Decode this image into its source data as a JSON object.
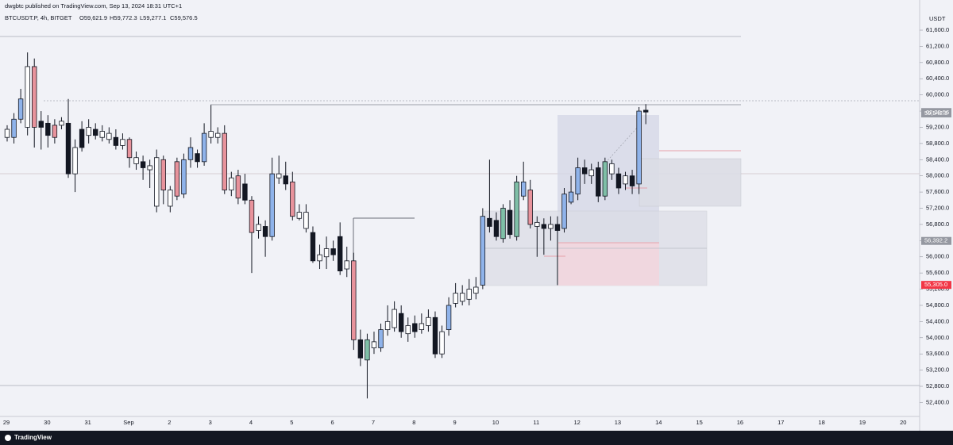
{
  "header": "dwgbtc published on TradingView.com, Sep 13, 2024 18:31 UTC+1",
  "brand": "TradingView",
  "chart_data": {
    "type": "candlestick",
    "title": "BTCUSDT.P, 4h, BITGET",
    "ohlc_legend": [
      "O59,621.9",
      "H59,772.3",
      "L59,277.1",
      "C59,576.5"
    ],
    "y_unit": "USDT",
    "categories": [
      "29",
      "30",
      "31",
      "Sep",
      "2",
      "3",
      "4",
      "5",
      "6",
      "7",
      "8",
      "9",
      "10",
      "11",
      "12",
      "13",
      "14",
      "15",
      "16",
      "17",
      "18",
      "19",
      "20"
    ],
    "open": [
      58950,
      58950,
      59400,
      59200,
      60700,
      59350,
      59300,
      59250,
      59250,
      59300,
      58050,
      59150,
      59000,
      59150,
      58950,
      58900,
      58950,
      58750,
      58900,
      58300,
      58350,
      58150,
      57250,
      58400,
      57250,
      58350,
      57550,
      58400,
      58550,
      58350,
      58950,
      58950,
      59050,
      57650,
      58000,
      57800,
      57400,
      56650,
      56750,
      56500,
      57950,
      58000,
      57850,
      56950,
      56700,
      56600,
      55900,
      56000,
      56200,
      56500,
      55700,
      55900,
      53950,
      53450,
      53750,
      53750,
      54200,
      54250,
      54600,
      54100,
      54350,
      54200,
      54300,
      54500,
      53600,
      54200,
      54850,
      54900,
      54950,
      55100,
      55300,
      56950,
      56900,
      56450,
      57150,
      56500,
      57500,
      57650,
      56750,
      56800,
      56700,
      56800,
      56700,
      57350,
      57550,
      58200,
      58000,
      58200,
      57500,
      58050,
      58050,
      57800,
      58000,
      57800,
      59621.9
    ],
    "high": [
      59250,
      59550,
      60150,
      61050,
      60900,
      59600,
      59500,
      59400,
      59450,
      59900,
      58900,
      59350,
      59400,
      59300,
      59250,
      59200,
      59150,
      59050,
      58950,
      58600,
      58500,
      58400,
      58650,
      58500,
      57750,
      58450,
      58550,
      58950,
      58650,
      59300,
      59750,
      59200,
      59250,
      58100,
      58150,
      58050,
      57500,
      57000,
      56900,
      58450,
      58500,
      58350,
      58100,
      57300,
      57300,
      56750,
      56300,
      56500,
      56400,
      56850,
      56250,
      56100,
      54200,
      54100,
      54150,
      54350,
      54800,
      54900,
      54800,
      54500,
      54550,
      54600,
      54700,
      54650,
      54300,
      55000,
      55350,
      55300,
      55450,
      55500,
      57200,
      58400,
      57100,
      57300,
      57400,
      58000,
      58350,
      57900,
      57000,
      56950,
      57000,
      57000,
      57700,
      58000,
      58450,
      58400,
      58300,
      58350,
      58450,
      58400,
      58200,
      58100,
      58150,
      59700,
      59772.3
    ],
    "low": [
      58850,
      58800,
      59300,
      59000,
      58700,
      58650,
      58700,
      58800,
      59150,
      57950,
      57600,
      58600,
      58800,
      58900,
      58850,
      58800,
      58650,
      58650,
      58200,
      58150,
      57900,
      57700,
      57100,
      57300,
      57100,
      57400,
      57450,
      58200,
      58200,
      58250,
      58800,
      58800,
      57550,
      57500,
      57300,
      57300,
      55600,
      56450,
      56000,
      56400,
      57800,
      57650,
      56900,
      56900,
      56600,
      55850,
      55700,
      55700,
      55900,
      55550,
      55500,
      53700,
      53300,
      52500,
      53600,
      53650,
      54050,
      54150,
      54000,
      53900,
      54000,
      54100,
      54150,
      53500,
      53500,
      54050,
      54750,
      54800,
      54800,
      54950,
      55200,
      56600,
      56400,
      56350,
      56450,
      56400,
      57400,
      56700,
      56000,
      56050,
      56400,
      55300,
      56600,
      57300,
      57400,
      57800,
      57800,
      57350,
      57400,
      57900,
      57550,
      57650,
      57550,
      57550,
      59277.1
    ],
    "close": [
      59150,
      59400,
      59900,
      60700,
      59200,
      59200,
      59000,
      58950,
      59350,
      58050,
      58700,
      58700,
      59200,
      59000,
      59100,
      59050,
      58750,
      58900,
      58450,
      58450,
      58200,
      58250,
      58450,
      57650,
      57650,
      57500,
      58400,
      58700,
      58350,
      59050,
      59100,
      59050,
      57650,
      57950,
      57450,
      57400,
      56600,
      56800,
      56500,
      58050,
      58050,
      57800,
      57000,
      57100,
      57100,
      55900,
      56050,
      56200,
      56050,
      55650,
      55900,
      53950,
      53500,
      53950,
      53900,
      54200,
      54400,
      54700,
      54150,
      54300,
      54150,
      54350,
      54500,
      53600,
      54150,
      54800,
      55100,
      55100,
      55200,
      55250,
      57000,
      56750,
      56500,
      57200,
      56550,
      57850,
      57850,
      56800,
      56850,
      56700,
      56800,
      56650,
      57550,
      57600,
      58200,
      58050,
      58150,
      57500,
      58350,
      58300,
      57700,
      58000,
      57750,
      59600,
      59576.5
    ],
    "colors": [
      "#ffffff",
      "#8fb3ea",
      "#8fb3ea",
      "#ffffff",
      "#e8939c",
      "#131722",
      "#131722",
      "#e8939c",
      "#ffffff",
      "#131722",
      "#ffffff",
      "#131722",
      "#ffffff",
      "#131722",
      "#ffffff",
      "#ffffff",
      "#131722",
      "#ffffff",
      "#e8939c",
      "#ffffff",
      "#131722",
      "#ffffff",
      "#ffffff",
      "#e8939c",
      "#ffffff",
      "#e8939c",
      "#8fb3ea",
      "#8fb3ea",
      "#131722",
      "#8fb3ea",
      "#ffffff",
      "#ffffff",
      "#e8939c",
      "#ffffff",
      "#e8939c",
      "#131722",
      "#e8939c",
      "#ffffff",
      "#131722",
      "#8fb3ea",
      "#ffffff",
      "#131722",
      "#e8939c",
      "#ffffff",
      "#ffffff",
      "#131722",
      "#ffffff",
      "#ffffff",
      "#131722",
      "#131722",
      "#ffffff",
      "#e8939c",
      "#131722",
      "#7fbfa7",
      "#ffffff",
      "#8fb3ea",
      "#ffffff",
      "#ffffff",
      "#131722",
      "#ffffff",
      "#131722",
      "#ffffff",
      "#ffffff",
      "#131722",
      "#ffffff",
      "#8fb3ea",
      "#ffffff",
      "#ffffff",
      "#ffffff",
      "#ffffff",
      "#8fb3ea",
      "#131722",
      "#131722",
      "#7fbfa7",
      "#131722",
      "#7fbfa7",
      "#8fb3ea",
      "#e8939c",
      "#ffffff",
      "#131722",
      "#ffffff",
      "#131722",
      "#8fb3ea",
      "#8fb3ea",
      "#8fb3ea",
      "#131722",
      "#ffffff",
      "#131722",
      "#7fbfa7",
      "#ffffff",
      "#131722",
      "#ffffff",
      "#131722",
      "#8fb3ea",
      "#131722"
    ],
    "ylim": [
      52114,
      62110
    ],
    "yticks": [
      {
        "value": 52400,
        "label": "52,400.0"
      },
      {
        "value": 52800,
        "label": "52,800.0"
      },
      {
        "value": 53200,
        "label": "53,200.0"
      },
      {
        "value": 53600,
        "label": "53,600.0"
      },
      {
        "value": 54000,
        "label": "54,000.0"
      },
      {
        "value": 54400,
        "label": "54,400.0"
      },
      {
        "value": 54800,
        "label": "54,800.0"
      },
      {
        "value": 55200,
        "label": "55,200.0"
      },
      {
        "value": 55600,
        "label": "55,600.0"
      },
      {
        "value": 56000,
        "label": "56,000.0"
      },
      {
        "value": 56400,
        "label": "56,400.0"
      },
      {
        "value": 56800,
        "label": "56,800.0"
      },
      {
        "value": 57200,
        "label": "57,200.0"
      },
      {
        "value": 57600,
        "label": "57,600.0"
      },
      {
        "value": 58000,
        "label": "58,000.0"
      },
      {
        "value": 58400,
        "label": "58,400.0"
      },
      {
        "value": 58800,
        "label": "58,800.0"
      },
      {
        "value": 59200,
        "label": "59,200.0"
      },
      {
        "value": 59600,
        "label": "59,600.0"
      },
      {
        "value": 60000,
        "label": "60,000.0"
      },
      {
        "value": 60400,
        "label": "60,400.0"
      },
      {
        "value": 60800,
        "label": "60,800.0"
      },
      {
        "value": 61200,
        "label": "61,200.0"
      },
      {
        "value": 61600,
        "label": "61,600.0"
      }
    ],
    "price_labels": [
      {
        "value": 59576.5,
        "label": "59,576.5",
        "color": "#9598a1"
      },
      {
        "value": 59542.3,
        "label": "59,542.3",
        "color": "#9598a1"
      },
      {
        "value": 56392.2,
        "label": "56,392.2",
        "color": "#9598a1"
      },
      {
        "value": 55305.0,
        "label": "55,305.0",
        "color": "#f23645"
      }
    ],
    "countdown": "02:29:56"
  }
}
